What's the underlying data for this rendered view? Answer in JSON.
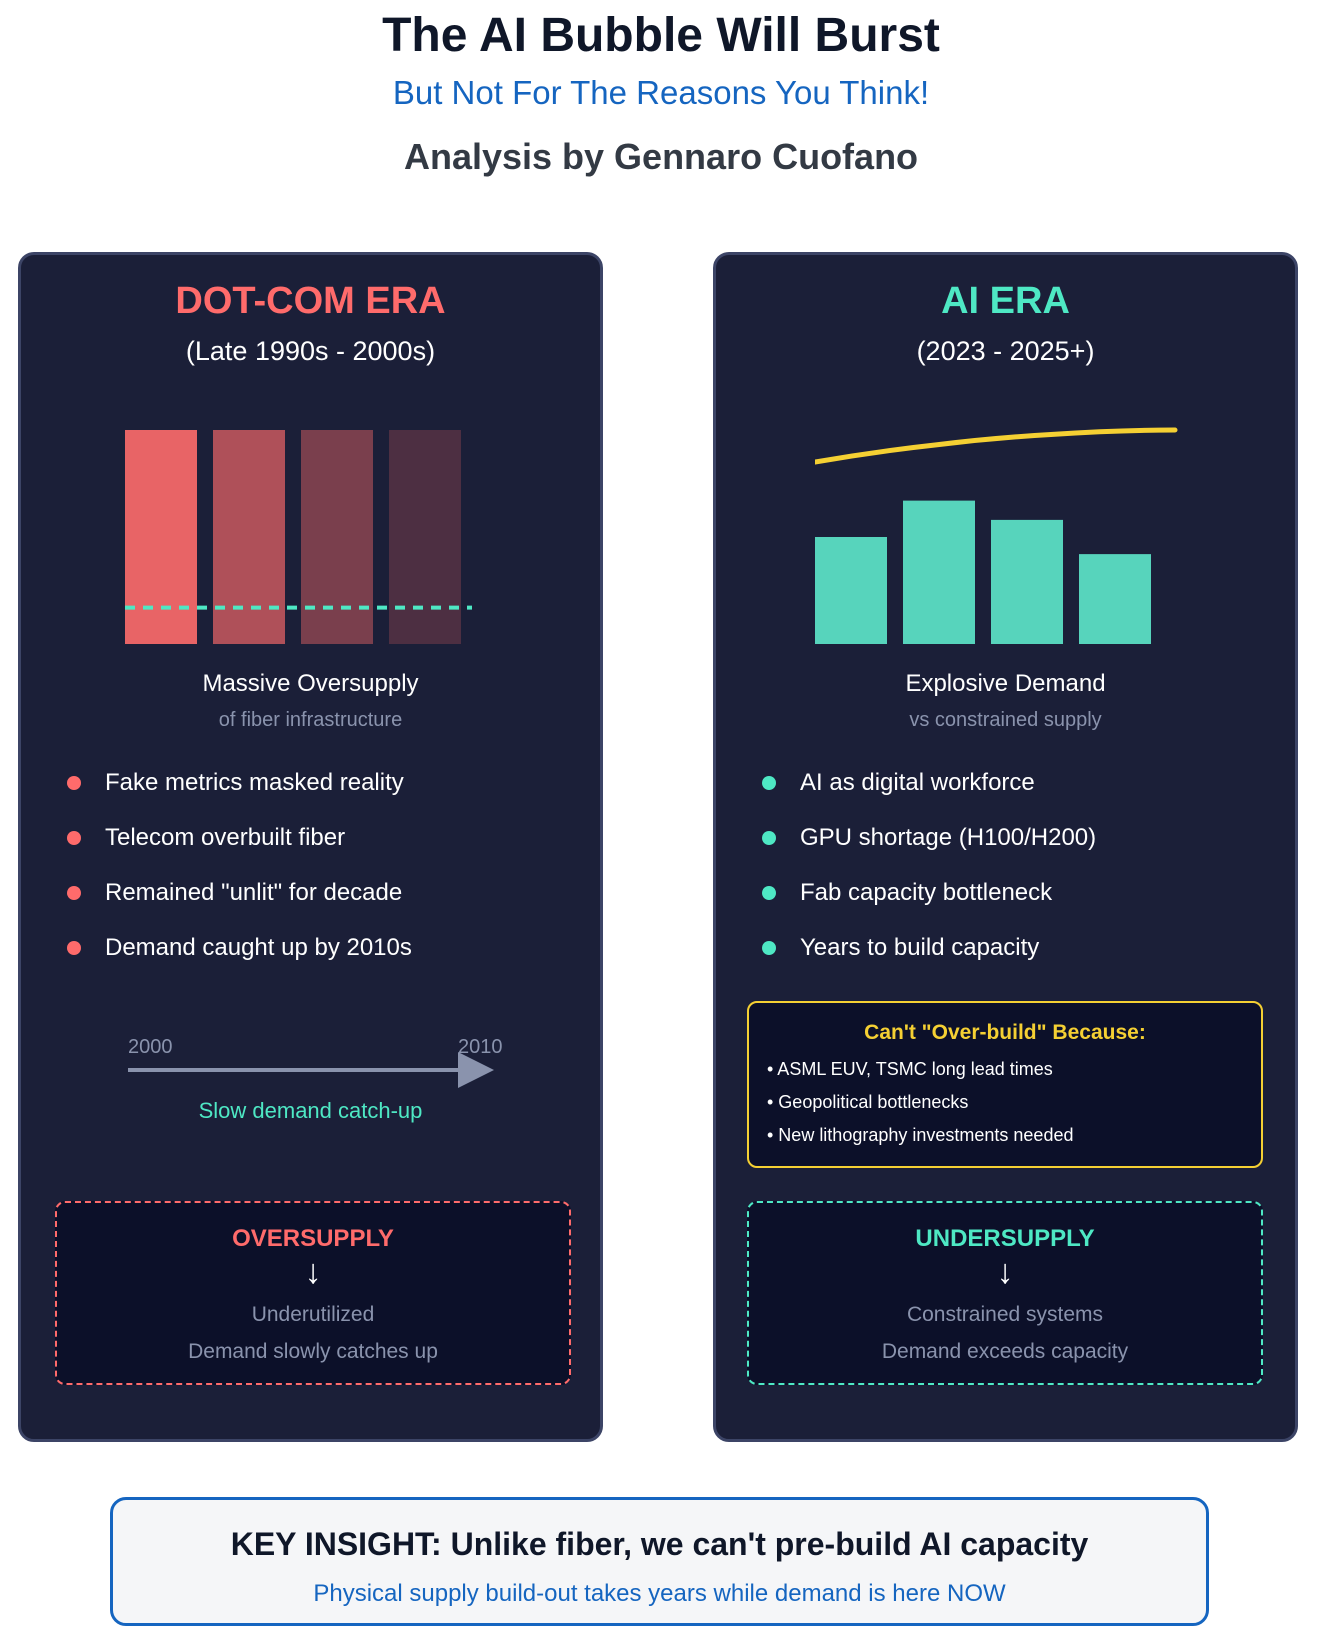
{
  "header": {
    "title": "The AI Bubble Will Burst",
    "subtitle": "But Not For The Reasons You Think!",
    "author": "Analysis by Gennaro Cuofano"
  },
  "colors": {
    "red": "#ff6b6b",
    "teal": "#4ee8c4",
    "yellow": "#f5d033",
    "panel": "#1b1f38",
    "blue": "#1565c0"
  },
  "dotcom": {
    "title": "DOT-COM ERA",
    "years": "(Late 1990s - 2000s)",
    "caption": "Massive Oversupply",
    "caption_sub": "of fiber infrastructure",
    "bullets": [
      "Fake metrics masked reality",
      "Telecom overbuilt fiber",
      "Remained \"unlit\" for decade",
      "Demand caught up by 2010s"
    ],
    "timeline": {
      "start": "2000",
      "end": "2010",
      "caption": "Slow demand catch-up"
    },
    "box": {
      "title": "OVERSUPPLY",
      "arrow": "↓",
      "line1": "Underutilized",
      "line2": "Demand slowly catches up"
    }
  },
  "ai": {
    "title": "AI ERA",
    "years": "(2023 - 2025+)",
    "caption": "Explosive Demand",
    "caption_sub": "vs constrained supply",
    "bullets": [
      "AI as digital workforce",
      "GPU shortage (H100/H200)",
      "Fab capacity bottleneck",
      "Years to build capacity"
    ],
    "constraint": {
      "title": "Can't \"Over-build\" Because:",
      "items": [
        "• ASML EUV, TSMC long lead times",
        "• Geopolitical bottlenecks",
        "• New lithography investments needed"
      ]
    },
    "box": {
      "title": "UNDERSUPPLY",
      "arrow": "↓",
      "line1": "Constrained systems",
      "line2": "Demand exceeds capacity"
    }
  },
  "insight": {
    "title": "KEY INSIGHT: Unlike fiber, we can't pre-build AI capacity",
    "subtitle": "Physical supply build-out takes years while demand is here NOW"
  },
  "chart_data": [
    {
      "type": "bar",
      "name": "dotcom-supply",
      "series": [
        {
          "name": "supply",
          "values": [
            100,
            100,
            100,
            100
          ],
          "opacity": [
            0.9,
            0.65,
            0.42,
            0.22
          ]
        },
        {
          "name": "demand-level",
          "values": [
            17
          ]
        }
      ],
      "ylim": [
        0,
        100
      ]
    },
    {
      "type": "bar",
      "name": "ai-demand",
      "series": [
        {
          "name": "capacity",
          "values": [
            50,
            67,
            58,
            42
          ]
        },
        {
          "name": "demand-curve",
          "values": [
            85,
            93,
            98,
            100
          ]
        }
      ],
      "ylim": [
        0,
        100
      ]
    }
  ]
}
